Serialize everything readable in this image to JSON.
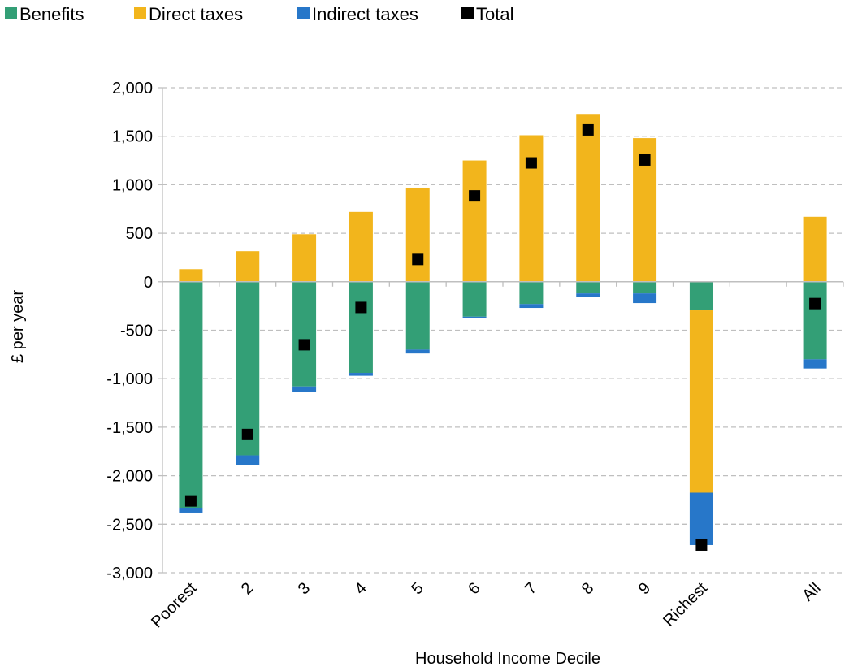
{
  "chart_data": {
    "type": "bar",
    "stacked": true,
    "categories": [
      "Poorest",
      "2",
      "3",
      "4",
      "5",
      "6",
      "7",
      "8",
      "9",
      "Richest",
      "",
      "All"
    ],
    "series": [
      {
        "name": "Benefits",
        "color": "#339f76",
        "values": [
          -2330,
          -1790,
          -1080,
          -940,
          -700,
          -360,
          -230,
          -120,
          -120,
          -295,
          null,
          -800
        ]
      },
      {
        "name": "Direct taxes",
        "color": "#f2b51c",
        "values": [
          130,
          315,
          490,
          720,
          970,
          1250,
          1510,
          1730,
          1480,
          -1880,
          null,
          670
        ]
      },
      {
        "name": "Indirect taxes",
        "color": "#2777c9",
        "values": [
          -50,
          -100,
          -60,
          -30,
          -40,
          -10,
          -40,
          -40,
          -100,
          -540,
          null,
          -95
        ]
      }
    ],
    "total": {
      "name": "Total",
      "color": "#000000",
      "values": [
        -2260,
        -1575,
        -650,
        -265,
        230,
        885,
        1225,
        1565,
        1255,
        -2715,
        null,
        -225
      ]
    },
    "xlabel": "Household Income Decile",
    "ylabel": "£ per year",
    "ylim": [
      -3000,
      2000
    ],
    "yticks": [
      2000,
      1500,
      1000,
      500,
      0,
      -500,
      -1000,
      -1500,
      -2000,
      -2500,
      -3000
    ],
    "ytick_labels": [
      "2,000",
      "1,500",
      "1,000",
      "500",
      "0",
      "-500",
      "-1,000",
      "-1,500",
      "-2,000",
      "-2,500",
      "-3,000"
    ],
    "grid": true,
    "legend_position": "top-left"
  }
}
